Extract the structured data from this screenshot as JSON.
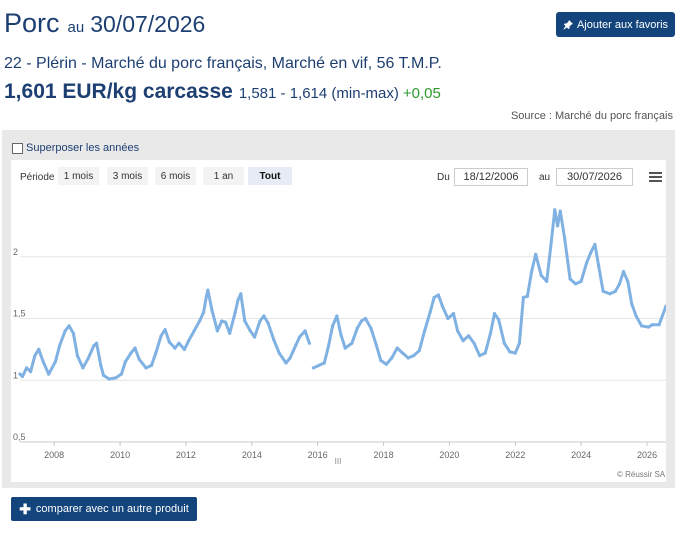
{
  "header": {
    "product": "Porc",
    "au": "au",
    "date": "30/07/2026",
    "fav_label": "Ajouter aux favoris",
    "subtitle": "22 - Plérin - Marché du porc français, Marché en vif, 56 T.M.P.",
    "price": "1,601 EUR/kg carcasse",
    "minmax": "1,581 - 1,614 (min-max)",
    "variation": "+0,05",
    "source": "Source : Marché du porc français"
  },
  "controls": {
    "superpose_label": "Superposer les années",
    "periode_label": "Période",
    "periods": [
      "1 mois",
      "3 mois",
      "6 mois",
      "1 an",
      "Tout"
    ],
    "active_period": "Tout",
    "du_label": "Du",
    "au_label": "au",
    "date_from": "18/12/2006",
    "date_to": "30/07/2026"
  },
  "compare_label": "comparer avec un autre produit",
  "credit": "© Réussir SA",
  "navigator_handle": "III",
  "colors": {
    "line": "#7fb1e3",
    "accent": "#13457c",
    "positive": "#2e9a2e"
  },
  "chart_data": {
    "type": "line",
    "title": "",
    "xlabel": "",
    "ylabel": "",
    "x_range": [
      "2006-12-18",
      "2026-07-30"
    ],
    "ylim": [
      0.5,
      2.5
    ],
    "y_ticks": [
      "0,5",
      "1",
      "1,5",
      "2"
    ],
    "x_ticks": [
      "2008",
      "2010",
      "2012",
      "2014",
      "2016",
      "2018",
      "2020",
      "2022",
      "2024",
      "2026"
    ],
    "grid": "horizontal",
    "series": [
      {
        "values": [
          [
            "2006-12-18",
            1.05
          ],
          [
            "2007-01-15",
            1.03
          ],
          [
            "2007-03-01",
            1.1
          ],
          [
            "2007-04-15",
            1.07
          ],
          [
            "2007-06-01",
            1.2
          ],
          [
            "2007-07-15",
            1.25
          ],
          [
            "2007-09-01",
            1.15
          ],
          [
            "2007-11-01",
            1.05
          ],
          [
            "2008-01-15",
            1.15
          ],
          [
            "2008-03-01",
            1.28
          ],
          [
            "2008-05-01",
            1.4
          ],
          [
            "2008-06-15",
            1.44
          ],
          [
            "2008-08-01",
            1.38
          ],
          [
            "2008-09-15",
            1.2
          ],
          [
            "2008-11-15",
            1.1
          ],
          [
            "2009-01-15",
            1.18
          ],
          [
            "2009-03-15",
            1.28
          ],
          [
            "2009-04-15",
            1.3
          ],
          [
            "2009-06-01",
            1.12
          ],
          [
            "2009-07-01",
            1.04
          ],
          [
            "2009-09-01",
            1.01
          ],
          [
            "2009-11-15",
            1.02
          ],
          [
            "2010-01-15",
            1.05
          ],
          [
            "2010-03-01",
            1.15
          ],
          [
            "2010-05-01",
            1.22
          ],
          [
            "2010-06-15",
            1.26
          ],
          [
            "2010-08-01",
            1.17
          ],
          [
            "2010-10-15",
            1.1
          ],
          [
            "2010-12-15",
            1.12
          ],
          [
            "2011-02-01",
            1.22
          ],
          [
            "2011-04-01",
            1.36
          ],
          [
            "2011-05-15",
            1.41
          ],
          [
            "2011-07-01",
            1.31
          ],
          [
            "2011-09-01",
            1.26
          ],
          [
            "2011-10-15",
            1.3
          ],
          [
            "2011-12-15",
            1.25
          ],
          [
            "2012-02-01",
            1.32
          ],
          [
            "2012-04-01",
            1.4
          ],
          [
            "2012-06-01",
            1.48
          ],
          [
            "2012-07-15",
            1.55
          ],
          [
            "2012-08-15",
            1.68
          ],
          [
            "2012-09-01",
            1.73
          ],
          [
            "2012-10-15",
            1.57
          ],
          [
            "2012-12-15",
            1.4
          ],
          [
            "2013-02-01",
            1.48
          ],
          [
            "2013-03-15",
            1.47
          ],
          [
            "2013-05-01",
            1.38
          ],
          [
            "2013-07-01",
            1.55
          ],
          [
            "2013-08-01",
            1.65
          ],
          [
            "2013-09-01",
            1.7
          ],
          [
            "2013-10-15",
            1.48
          ],
          [
            "2013-12-15",
            1.4
          ],
          [
            "2014-02-01",
            1.35
          ],
          [
            "2014-04-01",
            1.48
          ],
          [
            "2014-05-15",
            1.52
          ],
          [
            "2014-07-01",
            1.46
          ],
          [
            "2014-09-01",
            1.33
          ],
          [
            "2014-11-01",
            1.22
          ],
          [
            "2015-01-15",
            1.14
          ],
          [
            "2015-03-01",
            1.18
          ],
          [
            "2015-05-01",
            1.28
          ],
          [
            "2015-06-15",
            1.35
          ],
          [
            "2015-08-15",
            1.4
          ],
          [
            "2015-10-01",
            1.3
          ],
          [
            "2015-10-15",
            null
          ],
          [
            "2015-11-15",
            1.1
          ],
          [
            "2016-01-15",
            1.12
          ],
          [
            "2016-03-15",
            1.14
          ],
          [
            "2016-05-01",
            1.28
          ],
          [
            "2016-06-15",
            1.44
          ],
          [
            "2016-08-01",
            1.52
          ],
          [
            "2016-09-15",
            1.37
          ],
          [
            "2016-11-01",
            1.26
          ],
          [
            "2017-01-15",
            1.3
          ],
          [
            "2017-03-15",
            1.42
          ],
          [
            "2017-05-01",
            1.48
          ],
          [
            "2017-06-15",
            1.5
          ],
          [
            "2017-08-15",
            1.42
          ],
          [
            "2017-10-15",
            1.28
          ],
          [
            "2017-12-01",
            1.16
          ],
          [
            "2018-02-01",
            1.13
          ],
          [
            "2018-04-01",
            1.18
          ],
          [
            "2018-06-01",
            1.26
          ],
          [
            "2018-08-01",
            1.22
          ],
          [
            "2018-10-01",
            1.18
          ],
          [
            "2018-12-01",
            1.2
          ],
          [
            "2019-02-01",
            1.24
          ],
          [
            "2019-04-01",
            1.4
          ],
          [
            "2019-06-01",
            1.55
          ],
          [
            "2019-07-15",
            1.67
          ],
          [
            "2019-09-01",
            1.69
          ],
          [
            "2019-10-15",
            1.6
          ],
          [
            "2019-12-15",
            1.5
          ],
          [
            "2020-02-15",
            1.54
          ],
          [
            "2020-04-01",
            1.4
          ],
          [
            "2020-06-01",
            1.32
          ],
          [
            "2020-08-01",
            1.36
          ],
          [
            "2020-10-01",
            1.3
          ],
          [
            "2020-12-01",
            1.2
          ],
          [
            "2021-02-01",
            1.22
          ],
          [
            "2021-04-01",
            1.38
          ],
          [
            "2021-05-15",
            1.54
          ],
          [
            "2021-07-01",
            1.49
          ],
          [
            "2021-09-01",
            1.3
          ],
          [
            "2021-11-01",
            1.23
          ],
          [
            "2022-01-01",
            1.22
          ],
          [
            "2022-02-15",
            1.3
          ],
          [
            "2022-04-01",
            1.67
          ],
          [
            "2022-05-15",
            1.68
          ],
          [
            "2022-07-01",
            1.88
          ],
          [
            "2022-08-15",
            2.02
          ],
          [
            "2022-10-15",
            1.85
          ],
          [
            "2022-12-15",
            1.8
          ],
          [
            "2023-02-01",
            2.1
          ],
          [
            "2023-03-15",
            2.38
          ],
          [
            "2023-04-15",
            2.25
          ],
          [
            "2023-05-15",
            2.37
          ],
          [
            "2023-07-01",
            2.15
          ],
          [
            "2023-09-01",
            1.82
          ],
          [
            "2023-11-01",
            1.78
          ],
          [
            "2024-01-01",
            1.8
          ],
          [
            "2024-03-01",
            1.95
          ],
          [
            "2024-04-15",
            2.03
          ],
          [
            "2024-06-01",
            2.1
          ],
          [
            "2024-07-15",
            1.92
          ],
          [
            "2024-09-01",
            1.72
          ],
          [
            "2024-11-15",
            1.7
          ],
          [
            "2025-01-15",
            1.72
          ],
          [
            "2025-03-01",
            1.78
          ],
          [
            "2025-04-15",
            1.88
          ],
          [
            "2025-06-01",
            1.8
          ],
          [
            "2025-07-15",
            1.62
          ],
          [
            "2025-09-01",
            1.52
          ],
          [
            "2025-11-01",
            1.44
          ],
          [
            "2026-01-15",
            1.43
          ],
          [
            "2026-03-01",
            1.45
          ],
          [
            "2026-05-15",
            1.45
          ],
          [
            "2026-07-30",
            1.6
          ]
        ]
      }
    ]
  }
}
